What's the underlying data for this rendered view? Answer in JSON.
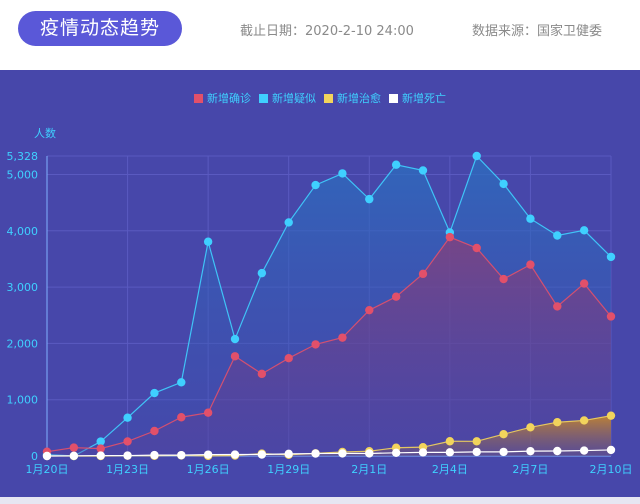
{
  "header": {
    "title": "疫情动态趋势",
    "cutoff": "截止日期：2020-2-10 24:00",
    "source": "数据来源：国家卫健委"
  },
  "colors": {
    "confirmed": "#e2506a",
    "suspected": "#3fd0ff",
    "cured": "#f2d45c",
    "deaths": "#ffffff",
    "background": "#4747aa",
    "accent": "#5a58d8"
  },
  "chart_data": {
    "type": "area",
    "ylabel": "人数",
    "ylim": [
      0,
      5328
    ],
    "yticks": [
      "0",
      "1,000",
      "2,000",
      "3,000",
      "4,000",
      "5,000",
      "5,328"
    ],
    "ytick_values": [
      0,
      1000,
      2000,
      3000,
      4000,
      5000,
      5328
    ],
    "grid": true,
    "legend_position": "top",
    "x": [
      "1月20日",
      "1月21日",
      "1月22日",
      "1月23日",
      "1月24日",
      "1月25日",
      "1月26日",
      "1月27日",
      "1月28日",
      "1月29日",
      "1月30日",
      "1月31日",
      "2月1日",
      "2月2日",
      "2月3日",
      "2月4日",
      "2月5日",
      "2月6日",
      "2月7日",
      "2月8日",
      "2月9日",
      "2月10日"
    ],
    "xtick_labels": [
      "1月20日",
      "1月23日",
      "1月26日",
      "1月29日",
      "2月1日",
      "2月4日",
      "2月7日",
      "2月10日"
    ],
    "series": [
      {
        "name": "新增确诊",
        "key": "confirmed",
        "values": [
          77,
          149,
          131,
          259,
          444,
          688,
          769,
          1771,
          1459,
          1737,
          1982,
          2102,
          2590,
          2829,
          3235,
          3887,
          3694,
          3143,
          3399,
          2656,
          3062,
          2478
        ]
      },
      {
        "name": "新增疑似",
        "key": "suspected",
        "values": [
          27,
          0,
          257,
          680,
          1118,
          1309,
          3806,
          2077,
          3248,
          4148,
          4812,
          5019,
          4562,
          5173,
          5072,
          3971,
          5328,
          4833,
          4214,
          3916,
          4008,
          3536
        ]
      },
      {
        "name": "新增治愈",
        "key": "cured",
        "values": [
          0,
          0,
          0,
          6,
          3,
          11,
          2,
          9,
          43,
          21,
          47,
          72,
          85,
          147,
          157,
          262,
          261,
          387,
          510,
          600,
          632,
          716
        ]
      },
      {
        "name": "新增死亡",
        "key": "deaths",
        "values": [
          0,
          3,
          8,
          8,
          16,
          15,
          24,
          26,
          26,
          38,
          43,
          46,
          45,
          57,
          64,
          65,
          73,
          73,
          86,
          89,
          97,
          108
        ]
      }
    ]
  }
}
